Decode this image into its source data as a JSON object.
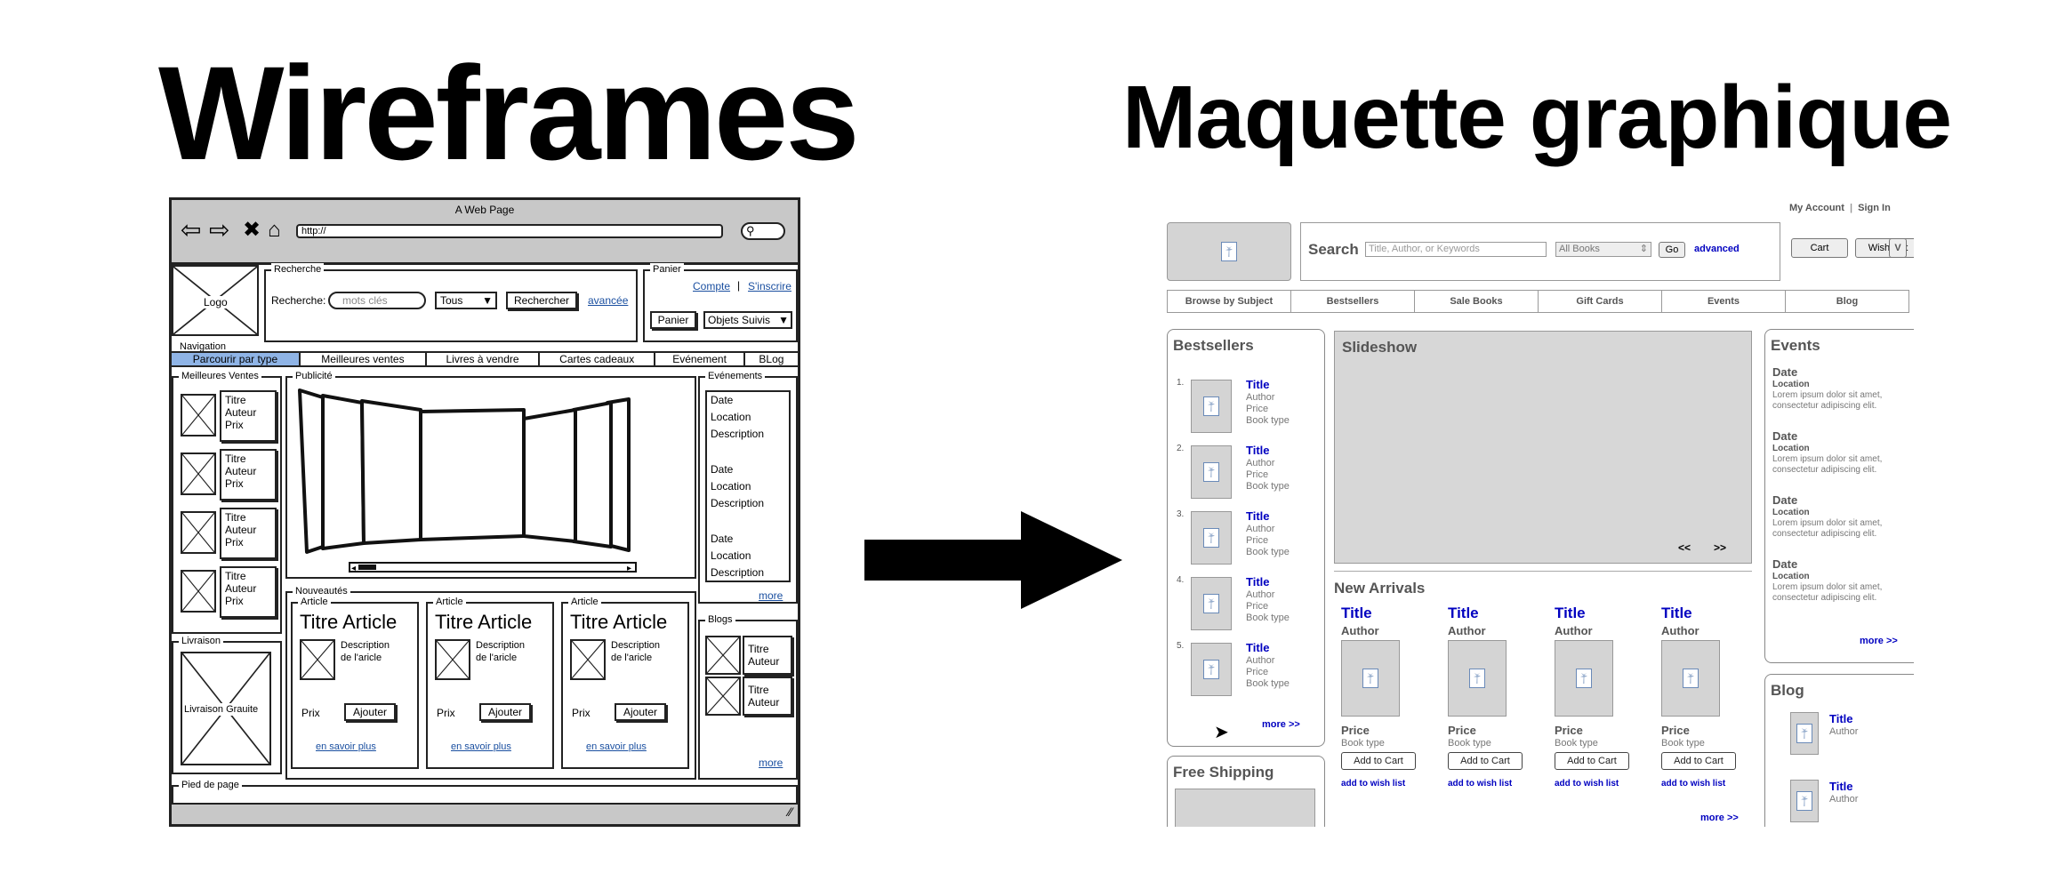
{
  "titles": {
    "left": "Wireframes",
    "right": "Maquette graphique"
  },
  "wireframe": {
    "page_title": "A Web Page",
    "url": "http://",
    "icons": [
      "back-arrow-icon",
      "forward-arrow-icon",
      "stop-icon",
      "home-icon",
      "search-icon"
    ],
    "logo": "Logo",
    "recherche": {
      "legend": "Recherche",
      "label": "Recherche:",
      "placeholder": "mots clés",
      "select": "Tous",
      "button": "Rechercher",
      "link": "avancée"
    },
    "panier": {
      "legend": "Panier",
      "compte": "Compte",
      "separator": "|",
      "inscrire": "S'inscrire",
      "button": "Panier",
      "select": "Objets Suivis"
    },
    "navigation": {
      "legend": "Navigation",
      "items": [
        "Parcourir par type",
        "Meilleures ventes",
        "Livres à vendre",
        "Cartes cadeaux",
        "Evénement",
        "BLog"
      ]
    },
    "meilleures": {
      "legend": "Meilleures Ventes",
      "lines": [
        "Titre",
        "Auteur",
        "Prix"
      ]
    },
    "publicite": {
      "legend": "Publicité"
    },
    "evenements": {
      "legend": "Evénements",
      "lines": [
        "Date",
        "Location",
        "Description"
      ],
      "more": "more"
    },
    "livraison": {
      "legend": "Livraison",
      "label": "Livraison Grauite"
    },
    "nouveautes": {
      "legend": "Nouveautés",
      "article_legend": "Article",
      "title": "Titre Article",
      "desc1": "Description",
      "desc2": "de l'aricle",
      "prix": "Prix",
      "button": "Ajouter",
      "link": "en savoir plus"
    },
    "blogs": {
      "legend": "Blogs",
      "lines": [
        "Titre",
        "Auteur"
      ],
      "more": "more"
    },
    "footer": {
      "legend": "Pied de page"
    }
  },
  "mockup": {
    "top_links": {
      "account": "My Account",
      "separator": "|",
      "signin": "Sign In"
    },
    "search": {
      "label": "Search",
      "placeholder": "Title, Author, or Keywords",
      "select": "All Books",
      "go": "Go",
      "advanced": "advanced"
    },
    "cart": "Cart",
    "wishlist": "Wish List",
    "v": "V",
    "nav": [
      "Browse by Subject",
      "Bestsellers",
      "Sale Books",
      "Gift Cards",
      "Events",
      "Blog"
    ],
    "bestsellers": {
      "title": "Bestsellers",
      "items": [
        {
          "num": "1.",
          "title": "Title",
          "author": "Author",
          "price": "Price",
          "type": "Book type"
        },
        {
          "num": "2.",
          "title": "Title",
          "author": "Author",
          "price": "Price",
          "type": "Book type"
        },
        {
          "num": "3.",
          "title": "Title",
          "author": "Author",
          "price": "Price",
          "type": "Book type"
        },
        {
          "num": "4.",
          "title": "Title",
          "author": "Author",
          "price": "Price",
          "type": "Book type"
        },
        {
          "num": "5.",
          "title": "Title",
          "author": "Author",
          "price": "Price",
          "type": "Book type"
        }
      ],
      "more": "more >>"
    },
    "free_shipping": "Free Shipping",
    "slideshow": {
      "title": "Slideshow",
      "prev": "<<",
      "next": ">>"
    },
    "new_arrivals": {
      "title": "New Arrivals",
      "item": {
        "title": "Title",
        "author": "Author",
        "price": "Price",
        "type": "Book type",
        "button": "Add to Cart",
        "wish": "add to wish list"
      },
      "more": "more >>"
    },
    "events": {
      "title": "Events",
      "item": {
        "date": "Date",
        "location": "Location",
        "text1": "Lorem ipsum dolor sit amet,",
        "text2": "consectetur adipiscing elit."
      },
      "more": "more >>"
    },
    "blog": {
      "title": "Blog",
      "item": {
        "title": "Title",
        "author": "Author"
      }
    }
  }
}
